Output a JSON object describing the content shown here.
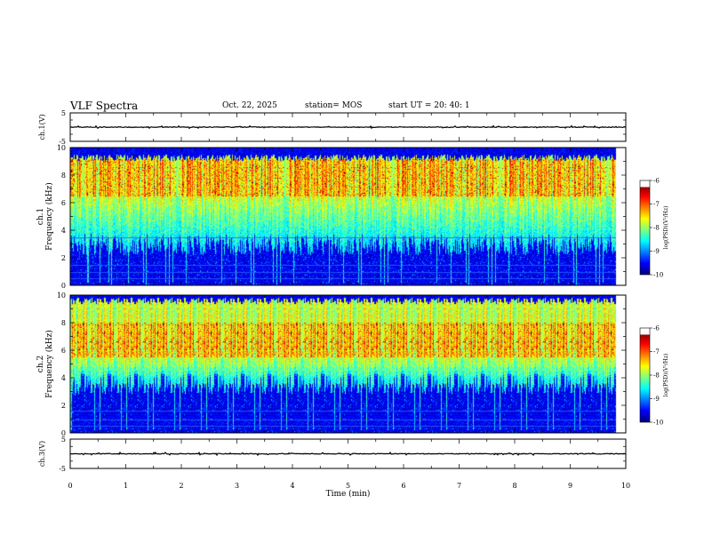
{
  "header": {
    "title": "VLF Spectra",
    "date": "Oct. 22, 2025",
    "station": "station= MOS",
    "start_ut": "start  UT  =   20: 40: 1"
  },
  "chart_data": [
    {
      "type": "line",
      "ylabel": "ch.1(V)",
      "xlim": [
        0,
        10
      ],
      "ylim": [
        -5,
        5
      ],
      "yticks": [
        "5",
        "-5"
      ],
      "trace_level": 0
    },
    {
      "type": "heatmap",
      "ylabel_channel": "ch.1",
      "ylabel": "Frequency (kHz)",
      "xlim": [
        0,
        10
      ],
      "data_xmax": 9.83,
      "ylim": [
        0,
        10
      ],
      "yticks": [
        "0",
        "2",
        "4",
        "6",
        "8",
        "10"
      ],
      "colorbar": {
        "label": "log(PSD)(V²/Hz)",
        "range": [
          -10,
          -6
        ],
        "ticks": [
          "-6",
          "-7",
          "-8",
          "-9",
          "-10"
        ]
      },
      "band_low_khz": 3.0,
      "band_high_khz": 9.3,
      "peak_band_khz": [
        6.5,
        9.2
      ],
      "narrowband_lines_khz": [
        0.5,
        1.0,
        1.5,
        3.5
      ]
    },
    {
      "type": "heatmap",
      "ylabel_channel": "ch.2",
      "ylabel": "Frequency (kHz)",
      "xlim": [
        0,
        10
      ],
      "data_xmax": 9.83,
      "ylim": [
        0,
        10
      ],
      "yticks": [
        "0",
        "2",
        "4",
        "6",
        "8",
        "10"
      ],
      "colorbar": {
        "label": "log(PSD)(V²/Hz)",
        "range": [
          -10,
          -6
        ],
        "ticks": [
          "-6",
          "-7",
          "-8",
          "-9",
          "-10"
        ]
      },
      "band_low_khz": 3.5,
      "band_high_khz": 9.6,
      "peak_band_khz": [
        5.5,
        8.0
      ],
      "narrowband_lines_khz": [
        0.5,
        1.0,
        1.6
      ]
    },
    {
      "type": "line",
      "ylabel": "ch.3(V)",
      "xlabel": "Time (min)",
      "xlim": [
        0,
        10
      ],
      "ylim": [
        -5,
        5
      ],
      "yticks": [
        "5",
        "-5"
      ],
      "xticks": [
        "0",
        "1",
        "2",
        "3",
        "4",
        "5",
        "6",
        "7",
        "8",
        "9",
        "10"
      ],
      "trace_level": 0
    }
  ]
}
